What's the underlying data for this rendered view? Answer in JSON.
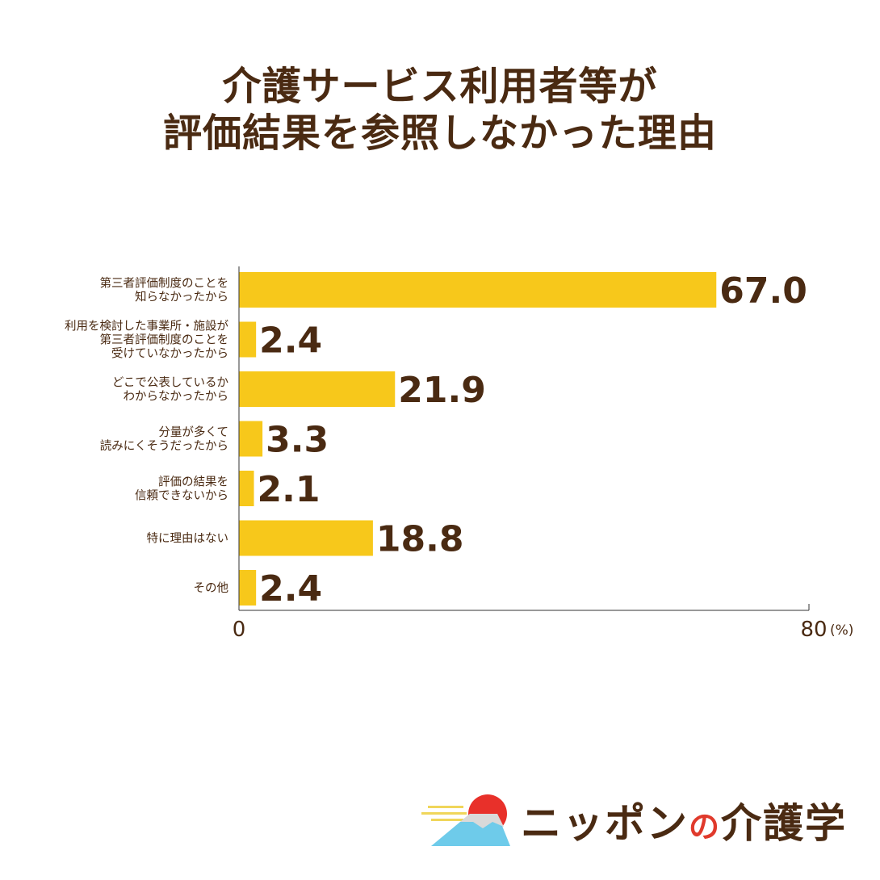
{
  "title": [
    "介護サービス利用者等が",
    "評価結果を参照しなかった理由"
  ],
  "chart_data": {
    "type": "bar",
    "orientation": "horizontal",
    "categories": [
      [
        "第三者評価制度のことを",
        "知らなかったから"
      ],
      [
        "利用を検討した事業所・施設が",
        "第三者評価制度のことを",
        "受けていなかったから"
      ],
      [
        "どこで公表しているか",
        "わからなかったから"
      ],
      [
        "分量が多くて",
        "読みにくそうだったから"
      ],
      [
        "評価の結果を",
        "信頼できないから"
      ],
      [
        "特に理由はない"
      ],
      [
        "その他"
      ]
    ],
    "values": [
      67.0,
      2.4,
      21.9,
      3.3,
      2.1,
      18.8,
      2.4
    ],
    "value_labels": [
      "67.0",
      "2.4",
      "21.9",
      "3.3",
      "2.1",
      "18.8",
      "2.4"
    ],
    "xlim": [
      0,
      80
    ],
    "ticks": [
      "0",
      "80"
    ],
    "unit": "(%)",
    "bar_color": "#f7c81b",
    "text_color": "#4a2a12",
    "grid": false,
    "legend": "none"
  },
  "logo": {
    "text_before": "ニッポン",
    "text_no": "の",
    "text_after": "介護学",
    "colors": {
      "sun": "#e8302a",
      "mountain": "#6ecbea",
      "clouds": "#f0d65a"
    }
  }
}
